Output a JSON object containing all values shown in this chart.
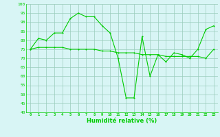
{
  "line1_x": [
    0,
    1,
    2,
    3,
    4,
    5,
    6,
    7,
    8,
    9,
    10,
    11,
    12,
    13,
    14,
    15,
    16,
    17,
    18,
    19,
    20,
    21,
    22,
    23
  ],
  "line1_y": [
    75,
    81,
    80,
    84,
    84,
    92,
    95,
    93,
    93,
    88,
    84,
    70,
    48,
    48,
    82,
    60,
    72,
    68,
    73,
    72,
    70,
    75,
    86,
    88
  ],
  "line2_x": [
    0,
    1,
    2,
    3,
    4,
    5,
    6,
    7,
    8,
    9,
    10,
    11,
    12,
    13,
    14,
    15,
    16,
    17,
    18,
    19,
    20,
    21,
    22,
    23
  ],
  "line2_y": [
    75,
    76,
    76,
    76,
    76,
    75,
    75,
    75,
    75,
    74,
    74,
    73,
    73,
    73,
    72,
    72,
    72,
    71,
    71,
    71,
    71,
    71,
    70,
    75
  ],
  "line_color": "#00cc00",
  "bg_color": "#d8f5f5",
  "grid_color": "#99ccbb",
  "xlabel": "Humidité relative (%)",
  "xlim": [
    -0.5,
    23.5
  ],
  "ylim": [
    40,
    100
  ],
  "yticks": [
    40,
    45,
    50,
    55,
    60,
    65,
    70,
    75,
    80,
    85,
    90,
    95,
    100
  ],
  "xticks": [
    0,
    1,
    2,
    3,
    4,
    5,
    6,
    7,
    8,
    9,
    10,
    11,
    12,
    13,
    14,
    15,
    16,
    17,
    18,
    19,
    20,
    21,
    22,
    23
  ]
}
